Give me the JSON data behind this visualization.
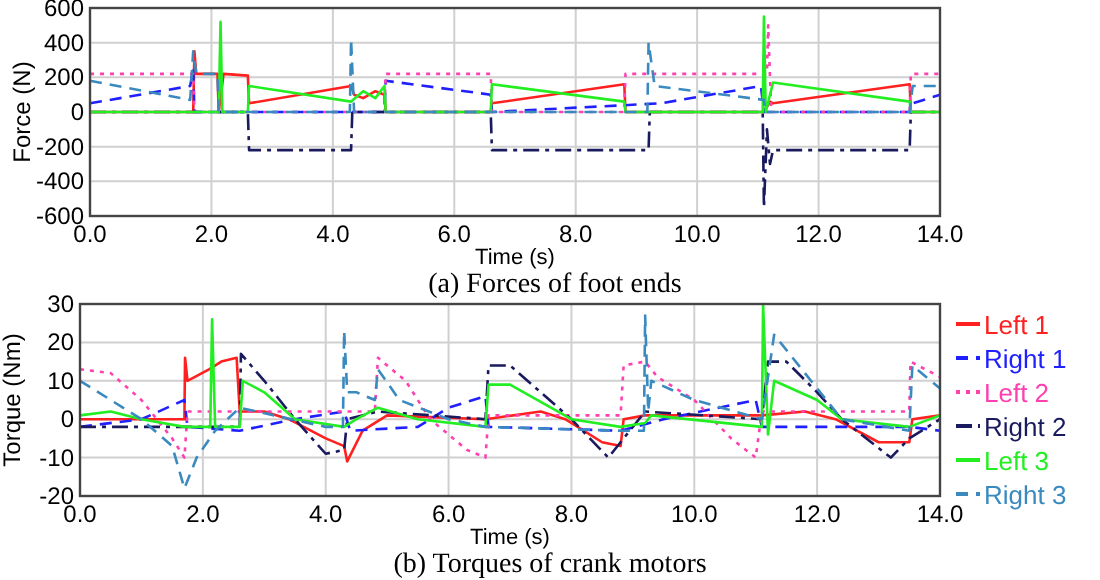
{
  "chart_data": [
    {
      "type": "line",
      "title": "(a) Forces of foot ends",
      "xlabel": "Time (s)",
      "ylabel": "Force (N)",
      "xlim": [
        0,
        14
      ],
      "ylim": [
        -600,
        600
      ],
      "xticks": [
        {
          "value": 0,
          "label": "0.0"
        },
        {
          "value": 2,
          "label": "2.0"
        },
        {
          "value": 4,
          "label": "4.0"
        },
        {
          "value": 6,
          "label": "6.0"
        },
        {
          "value": 8,
          "label": "8.0"
        },
        {
          "value": 10,
          "label": "10.0"
        },
        {
          "value": 12,
          "label": "12.0"
        },
        {
          "value": 14,
          "label": "14.0"
        }
      ],
      "yticks": [
        -600,
        -400,
        -200,
        0,
        200,
        400,
        600
      ],
      "grid": true,
      "legend": false,
      "series": [
        {
          "color": "#ff2020",
          "line_style": "solid",
          "x": [
            0,
            1.7,
            1.72,
            1.75,
            2.1,
            2.12,
            2.2,
            2.6,
            2.62,
            4.3,
            4.35,
            4.5,
            4.7,
            4.85,
            4.87,
            6.6,
            6.62,
            8.8,
            8.82,
            11.1,
            11.2,
            11.25,
            13.5,
            13.52,
            14
          ],
          "values": [
            0,
            0,
            350,
            220,
            220,
            0,
            220,
            210,
            50,
            150,
            100,
            80,
            120,
            100,
            0,
            0,
            50,
            160,
            0,
            0,
            60,
            50,
            160,
            0,
            0
          ]
        },
        {
          "color": "#2020ff",
          "line_style": "dashed",
          "x": [
            0,
            1.65,
            1.7,
            1.72,
            4.3,
            4.85,
            4.87,
            6.6,
            6.62,
            9.4,
            11.05,
            11.1,
            13.5,
            13.55,
            14
          ],
          "values": [
            50,
            150,
            250,
            0,
            0,
            0,
            180,
            100,
            0,
            50,
            150,
            0,
            0,
            50,
            100
          ]
        },
        {
          "color": "#ff40b0",
          "line_style": "dotted",
          "x": [
            0,
            1.7,
            1.72,
            4.85,
            4.87,
            6.6,
            6.62,
            8.8,
            8.82,
            11.15,
            11.17,
            11.22,
            13.5,
            13.52,
            14
          ],
          "values": [
            220,
            220,
            0,
            0,
            220,
            220,
            0,
            0,
            220,
            220,
            500,
            0,
            0,
            220,
            220
          ]
        },
        {
          "color": "#1a1a5e",
          "line_style": "dashdot",
          "x": [
            0,
            2.6,
            2.62,
            4.3,
            4.32,
            6.6,
            6.62,
            9.2,
            9.22,
            11.08,
            11.1,
            11.15,
            11.2,
            11.25,
            13.5,
            13.52,
            14
          ],
          "values": [
            0,
            0,
            -220,
            -220,
            0,
            0,
            -220,
            -220,
            0,
            0,
            -550,
            -100,
            -300,
            -220,
            -220,
            0,
            0
          ]
        },
        {
          "color": "#22ee22",
          "line_style": "solid",
          "x": [
            0,
            2.12,
            2.15,
            2.18,
            2.6,
            2.62,
            4.3,
            4.5,
            4.7,
            4.85,
            4.87,
            6.6,
            6.62,
            8.8,
            8.82,
            11.08,
            11.1,
            11.13,
            11.25,
            13.5,
            13.52,
            14
          ],
          "values": [
            0,
            0,
            520,
            0,
            0,
            150,
            60,
            120,
            80,
            150,
            0,
            0,
            160,
            60,
            0,
            0,
            550,
            0,
            170,
            60,
            0,
            0
          ]
        },
        {
          "color": "#3a8ac0",
          "line_style": "dashed",
          "x": [
            0,
            1.65,
            1.7,
            1.75,
            2.1,
            2.12,
            4.28,
            4.3,
            4.35,
            9.18,
            9.2,
            9.3,
            11.1,
            11.12,
            13.5,
            13.55,
            14
          ],
          "values": [
            180,
            70,
            350,
            220,
            220,
            0,
            0,
            420,
            0,
            0,
            400,
            150,
            70,
            0,
            0,
            150,
            150
          ]
        }
      ]
    },
    {
      "type": "line",
      "title": "(b) Torques of crank motors",
      "xlabel": "Time (s)",
      "ylabel": "Torque (Nm)",
      "xlim": [
        0,
        14
      ],
      "ylim": [
        -20,
        30
      ],
      "xticks": [
        {
          "value": 0,
          "label": "0.0"
        },
        {
          "value": 2,
          "label": "2.0"
        },
        {
          "value": 4,
          "label": "4.0"
        },
        {
          "value": 6,
          "label": "6.0"
        },
        {
          "value": 8,
          "label": "8.0"
        },
        {
          "value": 10,
          "label": "10.0"
        },
        {
          "value": 12,
          "label": "12.0"
        },
        {
          "value": 14,
          "label": "14.0"
        }
      ],
      "yticks": [
        -20,
        -10,
        0,
        10,
        20,
        30
      ],
      "grid": true,
      "legend": "right",
      "series": [
        {
          "name": "Left 1",
          "color": "#ff2020",
          "line_style": "solid",
          "x": [
            0,
            1.7,
            1.71,
            1.75,
            2.1,
            2.3,
            2.55,
            2.6,
            3.0,
            3.4,
            4.0,
            4.3,
            4.35,
            4.6,
            5.0,
            6.6,
            7.5,
            7.9,
            8.5,
            8.8,
            8.85,
            9.2,
            11.1,
            11.8,
            12.3,
            13.0,
            13.5,
            13.55,
            14
          ],
          "values": [
            0,
            0,
            16,
            10,
            13,
            15,
            16,
            2,
            2,
            0,
            -5,
            -7,
            -11,
            -3,
            1,
            0,
            2,
            0,
            -6,
            -7,
            0,
            1,
            1,
            2,
            0,
            -6,
            -6,
            0,
            1
          ]
        },
        {
          "name": "Right 1",
          "color": "#2020ff",
          "line_style": "dashed",
          "x": [
            0,
            1.0,
            1.7,
            1.75,
            2.6,
            3.5,
            4.3,
            4.4,
            5.5,
            6.0,
            6.6,
            6.65,
            8.8,
            9.5,
            11.0,
            11.1,
            13.5,
            14
          ],
          "values": [
            -2,
            0,
            5,
            -2,
            -3,
            0,
            2,
            -3,
            -2,
            3,
            6,
            -2,
            -3,
            0,
            5,
            -2,
            -2,
            -3
          ]
        },
        {
          "name": "Left 2",
          "color": "#ff40b0",
          "line_style": "dotted",
          "x": [
            0,
            0.5,
            1.0,
            1.5,
            1.7,
            1.75,
            2.6,
            4.3,
            4.8,
            4.85,
            5.3,
            5.7,
            6.3,
            6.6,
            6.65,
            8.8,
            8.85,
            9.2,
            9.4,
            10.0,
            10.6,
            11.0,
            11.1,
            13.5,
            13.52,
            14
          ],
          "values": [
            13,
            12,
            5,
            -5,
            -10,
            2,
            2,
            2,
            2,
            16,
            10,
            0,
            -8,
            -10,
            1,
            1,
            14,
            15,
            11,
            5,
            -5,
            -10,
            2,
            2,
            15,
            11
          ]
        },
        {
          "name": "Right 2",
          "color": "#1a1a5e",
          "line_style": "dashdot",
          "x": [
            0,
            1.7,
            2.6,
            2.62,
            3.0,
            3.5,
            4.0,
            4.3,
            4.35,
            4.85,
            6.6,
            6.65,
            7.0,
            7.5,
            8.0,
            8.6,
            8.8,
            9.2,
            11.1,
            11.2,
            11.5,
            12.0,
            12.4,
            13.2,
            13.5,
            14
          ],
          "values": [
            -2,
            -2,
            -2,
            17,
            10,
            0,
            -9,
            -8,
            0,
            2,
            0,
            14,
            14,
            7,
            0,
            -10,
            -6,
            2,
            0,
            15,
            15,
            7,
            0,
            -10,
            -5,
            0
          ]
        },
        {
          "name": "Left 3",
          "color": "#22ee22",
          "line_style": "solid",
          "x": [
            0,
            0.5,
            1.0,
            1.7,
            2.12,
            2.15,
            2.2,
            2.6,
            2.65,
            3.0,
            3.5,
            4.3,
            4.5,
            4.85,
            5.5,
            6.6,
            6.65,
            7.0,
            8.0,
            8.8,
            9.2,
            9.3,
            11.1,
            11.12,
            11.2,
            11.3,
            12.0,
            12.4,
            13.5,
            14
          ],
          "values": [
            1,
            2,
            0,
            -2,
            -2,
            26,
            -2,
            -2,
            10,
            7,
            0,
            -2,
            0,
            3,
            0,
            -2,
            9,
            9,
            0,
            -2,
            -1,
            1,
            -2,
            30,
            -4,
            10,
            5,
            0,
            -2,
            1
          ]
        },
        {
          "name": "Right 3",
          "color": "#3a8ac0",
          "line_style": "dashed",
          "x": [
            0,
            1.0,
            1.5,
            1.7,
            1.9,
            2.2,
            2.6,
            4.0,
            4.28,
            4.3,
            4.35,
            4.5,
            4.8,
            4.85,
            5.2,
            6.0,
            6.6,
            8.8,
            9.18,
            9.2,
            9.25,
            9.3,
            10.0,
            11.1,
            11.3,
            12.4,
            13.5,
            13.55,
            14
          ],
          "values": [
            10,
            0,
            -7,
            -18,
            -10,
            -3,
            3,
            -2,
            -2,
            23,
            7,
            7,
            5,
            13,
            5,
            0,
            -2,
            -3,
            -3,
            27,
            2,
            10,
            5,
            0,
            22,
            0,
            -3,
            14,
            8
          ]
        }
      ]
    }
  ]
}
